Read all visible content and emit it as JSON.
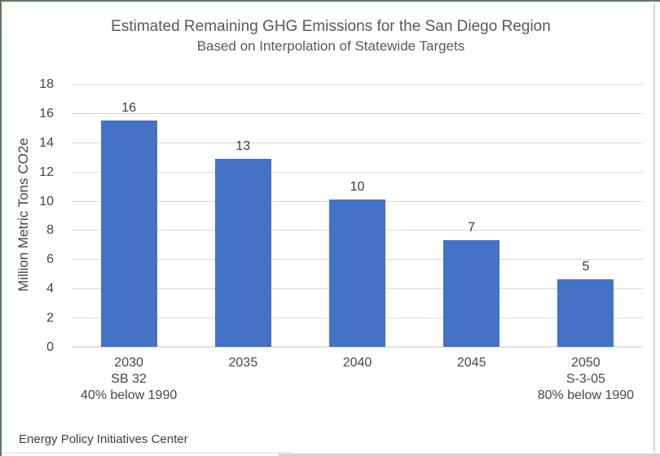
{
  "frame": {
    "border_green": "#5c7a5c",
    "edge_gray": "#d9d9d9"
  },
  "footer": {
    "text": "Energy Policy Initiatives Center"
  },
  "chart_data": {
    "type": "bar",
    "title": "Estimated Remaining GHG Emissions for the San Diego Region",
    "subtitle": "Based on Interpolation of Statewide Targets",
    "xlabel": "",
    "ylabel": "Million Metric Tons CO2e",
    "ylim": [
      0,
      18
    ],
    "yticks": [
      0,
      2,
      4,
      6,
      8,
      10,
      12,
      14,
      16,
      18
    ],
    "grid": true,
    "legend": false,
    "bar_color": "#4472c4",
    "gridline_color": "#d9d9d9",
    "categories": [
      [
        "2030",
        "SB 32",
        "40% below 1990"
      ],
      [
        "2035"
      ],
      [
        "2040"
      ],
      [
        "2045"
      ],
      [
        "2050",
        "S-3-05",
        "80% below 1990"
      ]
    ],
    "values": [
      15.5,
      12.9,
      10.1,
      7.3,
      4.6
    ],
    "data_labels": [
      "16",
      "13",
      "10",
      "7",
      "5"
    ]
  }
}
